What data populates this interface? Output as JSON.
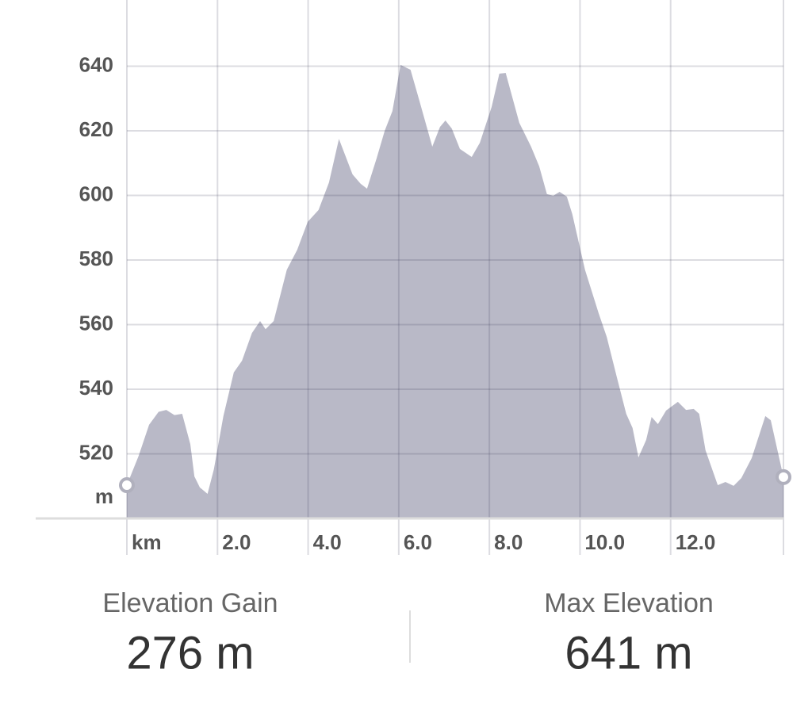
{
  "chart_data": {
    "type": "area",
    "xlabel": "km",
    "ylabel": "m",
    "x": [
      0,
      0.26,
      0.49,
      0.7,
      0.87,
      1.05,
      1.22,
      1.4,
      1.49,
      1.61,
      1.78,
      1.92,
      2.13,
      2.36,
      2.54,
      2.76,
      2.94,
      3.06,
      3.24,
      3.53,
      3.76,
      3.99,
      4.23,
      4.46,
      4.68,
      4.98,
      5.16,
      5.3,
      5.51,
      5.69,
      5.86,
      6.04,
      6.26,
      6.47,
      6.74,
      6.91,
      7.03,
      7.17,
      7.35,
      7.61,
      7.79,
      8.05,
      8.22,
      8.36,
      8.66,
      8.92,
      9.1,
      9.27,
      9.41,
      9.55,
      9.71,
      9.83,
      10.11,
      10.41,
      10.59,
      10.81,
      11.02,
      11.16,
      11.29,
      11.46,
      11.58,
      11.72,
      11.9,
      12.16,
      12.34,
      12.51,
      12.63,
      12.77,
      13.04,
      13.21,
      13.39,
      13.56,
      13.79,
      14.09,
      14.21,
      14.49
    ],
    "values": [
      510.3,
      519.4,
      529,
      533,
      533.6,
      532,
      532.4,
      523,
      513,
      509.6,
      507.6,
      515.2,
      531.7,
      545.2,
      548.8,
      557.4,
      561.1,
      558.6,
      561.1,
      577,
      583.2,
      591.8,
      595.5,
      604,
      617.5,
      606.5,
      603.6,
      602.1,
      611.4,
      620,
      626.1,
      640.4,
      638.9,
      628.6,
      615.1,
      621.2,
      623.2,
      620.7,
      614.4,
      611.9,
      616.3,
      627.4,
      637.7,
      637.9,
      622.5,
      615.1,
      609,
      600.4,
      599.9,
      601.1,
      599.6,
      594.2,
      577,
      563.6,
      556.2,
      543.9,
      532.4,
      528,
      518.9,
      524.3,
      531.4,
      529.2,
      533.4,
      536.1,
      533.6,
      533.9,
      532.4,
      521.1,
      510.3,
      511.3,
      510.1,
      512.5,
      518.7,
      531.7,
      530.4,
      512.8
    ],
    "color": "#b9b9c7",
    "xlim": [
      0,
      14.49
    ],
    "ylim": [
      500,
      660
    ],
    "xticks": [
      {
        "value": 2,
        "label": "2.0"
      },
      {
        "value": 4,
        "label": "4.0"
      },
      {
        "value": 6,
        "label": "6.0"
      },
      {
        "value": 8,
        "label": "8.0"
      },
      {
        "value": 10,
        "label": "10.0"
      },
      {
        "value": 12,
        "label": "12.0"
      }
    ],
    "yticks": [
      520,
      540,
      560,
      580,
      600,
      620,
      640
    ],
    "grid": true
  },
  "stats": [
    {
      "label": "Elevation Gain",
      "value": "276 m"
    },
    {
      "label": "Max Elevation",
      "value": "641 m"
    }
  ]
}
